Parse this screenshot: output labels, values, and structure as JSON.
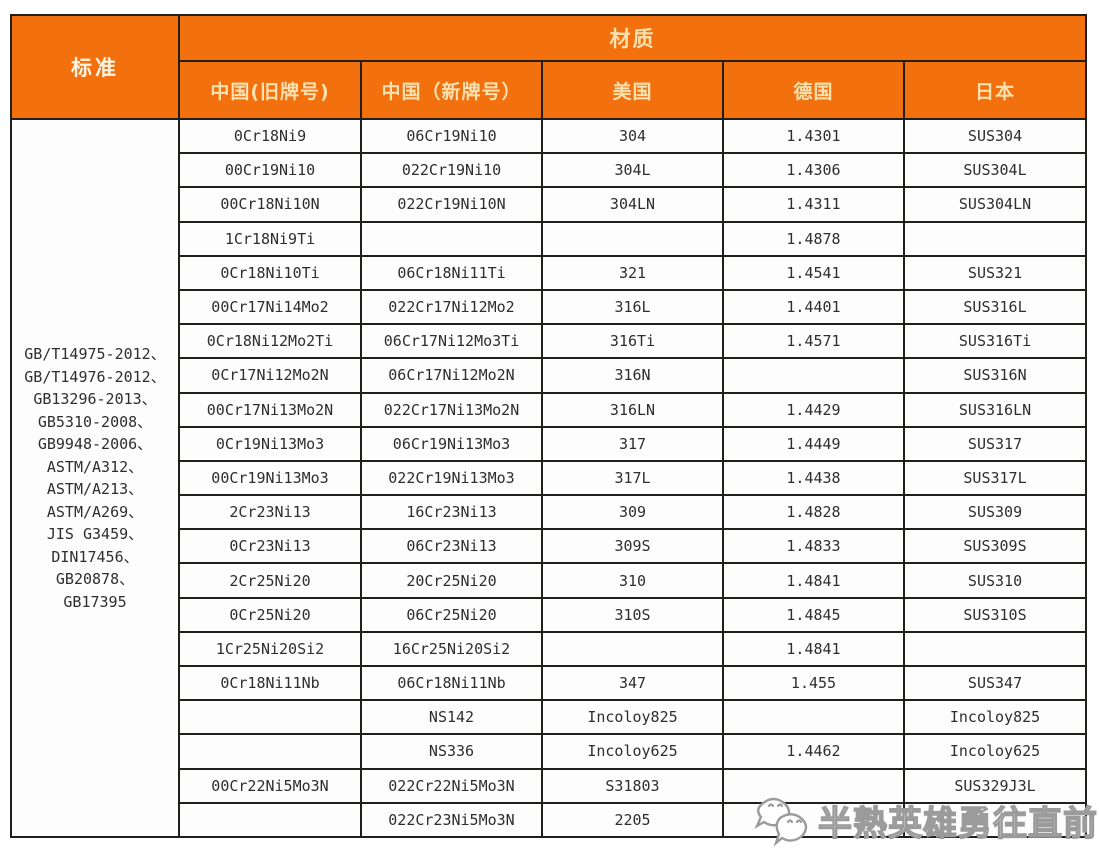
{
  "header": {
    "standard_label": "标准",
    "material_label": "材质",
    "columns": [
      "中国(旧牌号)",
      "中国（新牌号）",
      "美国",
      "德国",
      "日本"
    ]
  },
  "standards_lines": [
    "GB/T14975-2012、",
    "GB/T14976-2012、",
    "GB13296-2013、",
    "GB5310-2008、",
    "GB9948-2006、",
    "ASTM/A312、",
    "ASTM/A213、",
    "ASTM/A269、",
    "JIS G3459、",
    "DIN17456、",
    "GB20878、",
    "GB17395"
  ],
  "rows": [
    [
      "0Cr18Ni9",
      "06Cr19Ni10",
      "304",
      "1.4301",
      "SUS304"
    ],
    [
      "00Cr19Ni10",
      "022Cr19Ni10",
      "304L",
      "1.4306",
      "SUS304L"
    ],
    [
      "00Cr18Ni10N",
      "022Cr19Ni10N",
      "304LN",
      "1.4311",
      "SUS304LN"
    ],
    [
      "1Cr18Ni9Ti",
      "",
      "",
      "1.4878",
      ""
    ],
    [
      "0Cr18Ni10Ti",
      "06Cr18Ni11Ti",
      "321",
      "1.4541",
      "SUS321"
    ],
    [
      "00Cr17Ni14Mo2",
      "022Cr17Ni12Mo2",
      "316L",
      "1.4401",
      "SUS316L"
    ],
    [
      "0Cr18Ni12Mo2Ti",
      "06Cr17Ni12Mo3Ti",
      "316Ti",
      "1.4571",
      "SUS316Ti"
    ],
    [
      "0Cr17Ni12Mo2N",
      "06Cr17Ni12Mo2N",
      "316N",
      "",
      "SUS316N"
    ],
    [
      "00Cr17Ni13Mo2N",
      "022Cr17Ni13Mo2N",
      "316LN",
      "1.4429",
      "SUS316LN"
    ],
    [
      "0Cr19Ni13Mo3",
      "06Cr19Ni13Mo3",
      "317",
      "1.4449",
      "SUS317"
    ],
    [
      "00Cr19Ni13Mo3",
      "022Cr19Ni13Mo3",
      "317L",
      "1.4438",
      "SUS317L"
    ],
    [
      "2Cr23Ni13",
      "16Cr23Ni13",
      "309",
      "1.4828",
      "SUS309"
    ],
    [
      "0Cr23Ni13",
      "06Cr23Ni13",
      "309S",
      "1.4833",
      "SUS309S"
    ],
    [
      "2Cr25Ni20",
      "20Cr25Ni20",
      "310",
      "1.4841",
      "SUS310"
    ],
    [
      "0Cr25Ni20",
      "06Cr25Ni20",
      "310S",
      "1.4845",
      "SUS310S"
    ],
    [
      "1Cr25Ni20Si2",
      "16Cr25Ni20Si2",
      "",
      "1.4841",
      ""
    ],
    [
      "0Cr18Ni11Nb",
      "06Cr18Ni11Nb",
      "347",
      "1.455",
      "SUS347"
    ],
    [
      "",
      "NS142",
      "Incoloy825",
      "",
      "Incoloy825"
    ],
    [
      "",
      "NS336",
      "Incoloy625",
      "1.4462",
      "Incoloy625"
    ],
    [
      "00Cr22Ni5Mo3N",
      "022Cr22Ni5Mo3N",
      "S31803",
      "",
      "SUS329J3L"
    ],
    [
      "",
      "022Cr23Ni5Mo3N",
      "2205",
      "",
      ""
    ]
  ],
  "watermark": {
    "text": "半熟英雄勇往直前",
    "icon": "chat-faces-icon"
  },
  "colors": {
    "header_bg": "#F2700E",
    "border": "#211f1c",
    "cell_text": "#2e2e2e",
    "header_text_main": "#FDF4E3",
    "header_text_sub": "#F9E2B0"
  }
}
